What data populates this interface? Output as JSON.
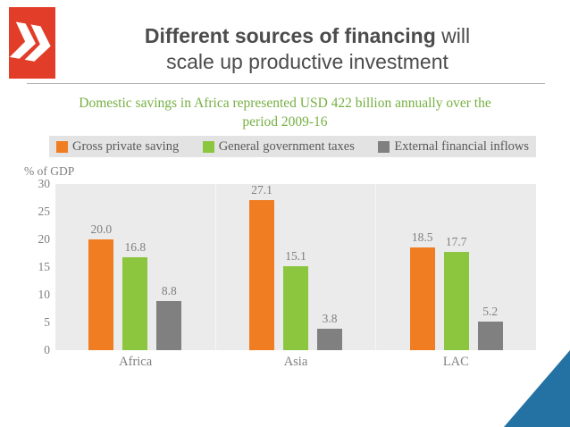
{
  "slide": {
    "title_bold": "Different sources of financing",
    "title_regular_suffix": " will",
    "title_line2": "scale up productive investment",
    "subtitle": "Domestic savings in Africa represented USD 422 billion annually over the period 2009-16",
    "axis_unit": "% of GDP"
  },
  "colors": {
    "logo_red": "#e23d28",
    "corner_blue": "#2471a3",
    "legend_bg": "#e3e3e3",
    "plot_bg": "#ebebeb",
    "subtitle_green": "#76b043",
    "title_gray": "#4c4c4c",
    "label_gray": "#7f7f7f"
  },
  "chart_data": {
    "type": "bar",
    "title": "Domestic savings in Africa represented USD 422 billion annually over the period 2009-16",
    "categories": [
      "Africa",
      "Asia",
      "LAC"
    ],
    "series": [
      {
        "name": "Gross private saving",
        "color": "#f07d22",
        "values": [
          20.0,
          27.1,
          18.5
        ]
      },
      {
        "name": "General government taxes",
        "color": "#8cc63f",
        "values": [
          16.8,
          15.1,
          17.7
        ]
      },
      {
        "name": "External financial inflows",
        "color": "#808080",
        "values": [
          8.8,
          3.8,
          5.2
        ]
      }
    ],
    "xlabel": "",
    "ylabel": "% of GDP",
    "ylim": [
      0,
      30
    ],
    "yticks": [
      0,
      5,
      10,
      15,
      20,
      25,
      30
    ],
    "grid": false,
    "legend_position": "top",
    "value_labels": true,
    "value_label_decimals": 1
  }
}
